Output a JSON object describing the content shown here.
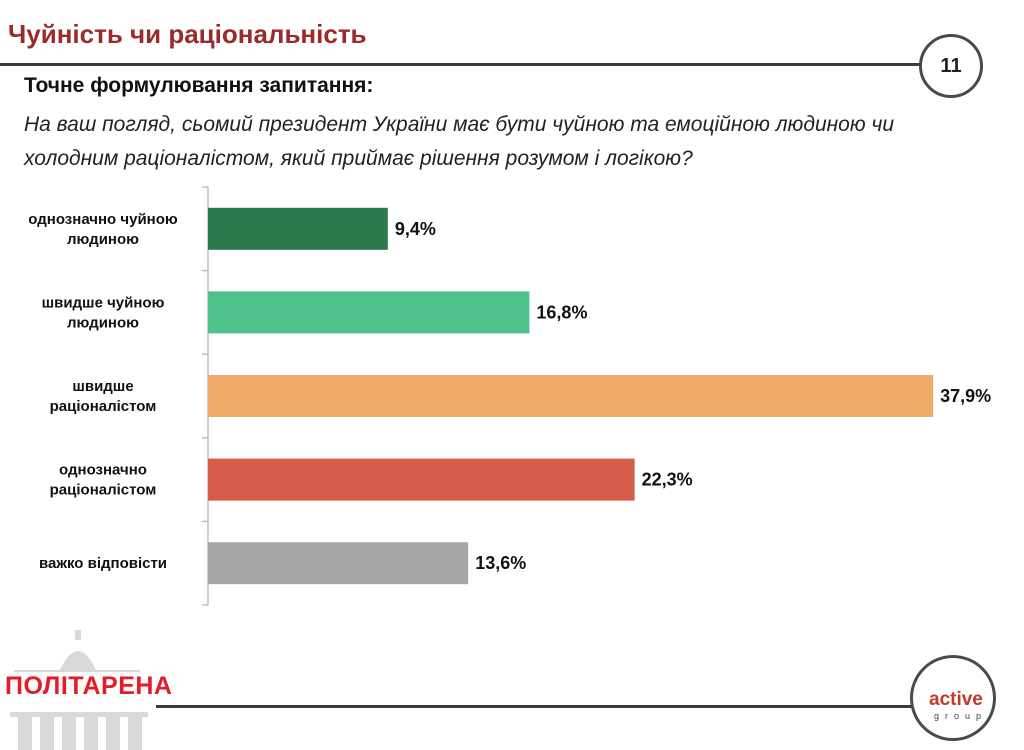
{
  "header": {
    "title": "Чуйність чи раціональність",
    "page_number": "11"
  },
  "question": {
    "label": "Точне формулювання запитання:",
    "text": "На ваш погляд, сьомий президент України має бути чуйною та емоційною людиною чи холодним раціоналістом, який приймає рішення розумом і логікою?"
  },
  "chart_data": {
    "type": "bar",
    "orientation": "horizontal",
    "title": "",
    "categories": [
      [
        "однозначно чуйною",
        "людиною"
      ],
      [
        "швидше чуйною",
        "людиною"
      ],
      [
        "швидше",
        "раціоналістом"
      ],
      [
        "однозначно",
        "раціоналістом"
      ],
      [
        "важко відповісти"
      ]
    ],
    "values": [
      9.4,
      16.8,
      37.9,
      22.3,
      13.6
    ],
    "value_labels": [
      "9,4%",
      "16,8%",
      "37,9%",
      "22,3%",
      "13,6%"
    ],
    "colors": [
      "#2a7a4d",
      "#4fc18a",
      "#f2aa6a",
      "#d55b4b",
      "#a6a6a6"
    ],
    "xlim": [
      0,
      38
    ],
    "xlabel": "",
    "ylabel": "",
    "grid": false
  },
  "footer": {
    "brand": "ПОЛІТАРЕНА",
    "partner_main": "active",
    "partner_sub": "group"
  }
}
